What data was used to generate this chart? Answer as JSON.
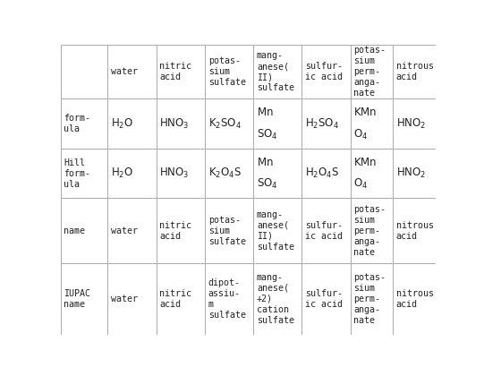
{
  "col_headers": [
    "water",
    "nitric\nacid",
    "potas-\nsium\nsulfate",
    "mang-\nanese(\nII)\nsulfate",
    "sulfur-\nic acid",
    "potas-\nsium\nperm-\nanga-\nnate",
    "nitrous\nacid"
  ],
  "row_headers": [
    "form-\nula",
    "Hill\nform-\nula",
    "name",
    "IUPAC\nname"
  ],
  "formula_cells": [
    "$\\mathrm{H_2O}$",
    "$\\mathrm{HNO_3}$",
    "$\\mathrm{K_2SO_4}$",
    "$\\mathrm{Mn}$||$\\mathrm{SO_4}$",
    "$\\mathrm{H_2SO_4}$",
    "$\\mathrm{KMn}$||$\\mathrm{O_4}$",
    "$\\mathrm{HNO_2}$"
  ],
  "hill_cells": [
    "$\\mathrm{H_2O}$",
    "$\\mathrm{HNO_3}$",
    "$\\mathrm{K_2O_4S}$",
    "$\\mathrm{Mn}$||$\\mathrm{SO_4}$",
    "$\\mathrm{H_2O_4S}$",
    "$\\mathrm{KMn}$||$\\mathrm{O_4}$",
    "$\\mathrm{HNO_2}$"
  ],
  "name_cells": [
    "water",
    "nitric\nacid",
    "potas-\nsium\nsulfate",
    "mang-\nanese(\nII)\nsulfate",
    "sulfur-\nic acid",
    "potas-\nsium\nperm-\nanga-\nnate",
    "nitrous\nacid"
  ],
  "iupac_cells": [
    "water",
    "nitric\nacid",
    "dipot-\nassiu-\nm\nsulfate",
    "mang-\nanese(\n+2)\ncation\nsulfate",
    "sulfur-\nic acid",
    "potas-\nsium\nperm-\nanga-\nnate",
    "nitrous\nacid"
  ],
  "bg_color": "#ffffff",
  "grid_color": "#aaaaaa",
  "text_color": "#222222",
  "font_size": 7.2,
  "formula_font_size": 8.5
}
